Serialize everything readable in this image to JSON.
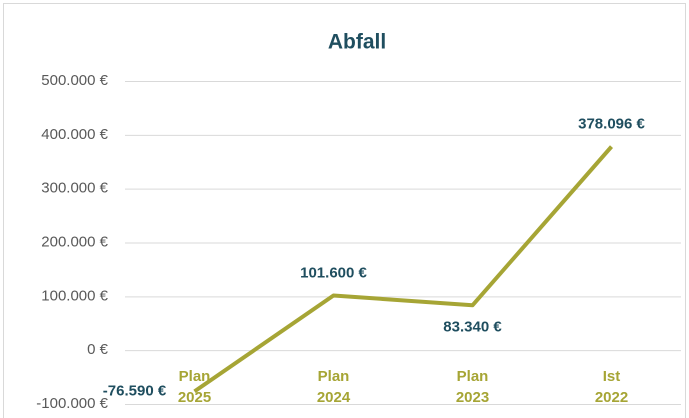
{
  "chart_data": {
    "type": "line",
    "title": "Abfall",
    "categories": [
      "Plan 2025",
      "Plan 2024",
      "Plan 2023",
      "Ist 2022"
    ],
    "series": [
      {
        "color": "#a6a535",
        "values": [
          -76590,
          101600,
          83340,
          378096
        ],
        "value_labels": [
          "-76.590 €",
          "101.600 €",
          "83.340 €",
          "378.096 €"
        ]
      }
    ],
    "ylim": [
      -100000,
      500000
    ],
    "yticks": [
      {
        "value": -100000,
        "label": "-100.000 €"
      },
      {
        "value": 0,
        "label": "0 €"
      },
      {
        "value": 100000,
        "label": "100.000 €"
      },
      {
        "value": 200000,
        "label": "200.000 €"
      },
      {
        "value": 300000,
        "label": "300.000 €"
      },
      {
        "value": 400000,
        "label": "400.000 €"
      },
      {
        "value": 500000,
        "label": "500.000 €"
      }
    ],
    "grid": true
  }
}
